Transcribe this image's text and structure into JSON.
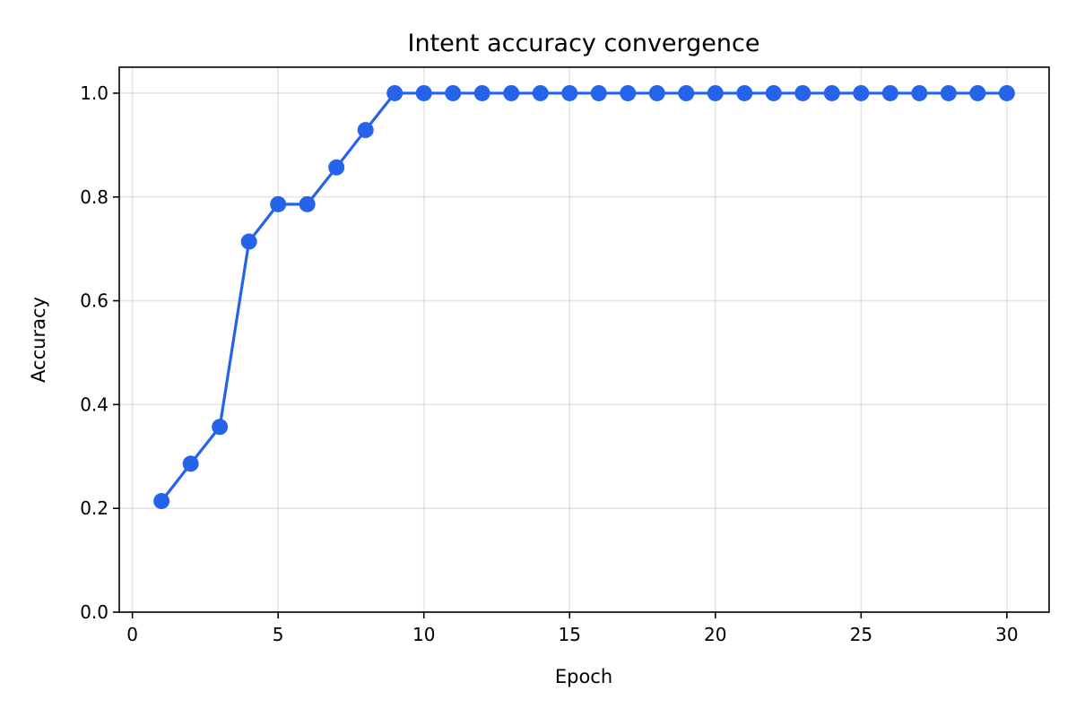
{
  "chart_data": {
    "type": "line",
    "title": "Intent accuracy convergence",
    "xlabel": "Epoch",
    "ylabel": "Accuracy",
    "xlim": [
      -0.45,
      31.45
    ],
    "ylim": [
      0.0,
      1.05
    ],
    "x_ticks": [
      0,
      5,
      10,
      15,
      20,
      25,
      30
    ],
    "y_ticks": [
      0.0,
      0.2,
      0.4,
      0.6,
      0.8,
      1.0
    ],
    "x_tick_labels": [
      "0",
      "5",
      "10",
      "15",
      "20",
      "25",
      "30"
    ],
    "y_tick_labels": [
      "0.0",
      "0.2",
      "0.4",
      "0.6",
      "0.8",
      "1.0"
    ],
    "grid": true,
    "series": [
      {
        "color": "#2563eb",
        "marker": "circle",
        "x": [
          1,
          2,
          3,
          4,
          5,
          6,
          7,
          8,
          9,
          10,
          11,
          12,
          13,
          14,
          15,
          16,
          17,
          18,
          19,
          20,
          21,
          22,
          23,
          24,
          25,
          26,
          27,
          28,
          29,
          30
        ],
        "y": [
          0.214,
          0.286,
          0.357,
          0.714,
          0.786,
          0.786,
          0.857,
          0.929,
          1.0,
          1.0,
          1.0,
          1.0,
          1.0,
          1.0,
          1.0,
          1.0,
          1.0,
          1.0,
          1.0,
          1.0,
          1.0,
          1.0,
          1.0,
          1.0,
          1.0,
          1.0,
          1.0,
          1.0,
          1.0,
          1.0
        ]
      }
    ]
  }
}
